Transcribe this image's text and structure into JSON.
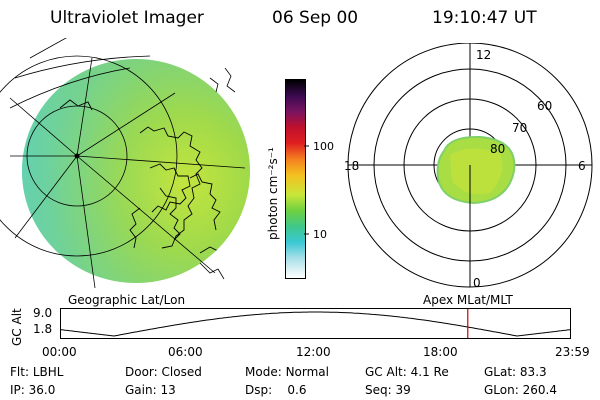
{
  "header": {
    "title": "Ultraviolet Imager",
    "date": "06 Sep 00",
    "time": "19:10:47 UT"
  },
  "colorbar": {
    "unit_label": "photon cm⁻²s⁻¹",
    "ticks": [
      {
        "label": "100",
        "value": 100
      },
      {
        "label": "10",
        "value": 10
      }
    ]
  },
  "geo_panel": {
    "label": "Geographic Lat/Lon"
  },
  "polar_panel": {
    "label": "Apex MLat/MLT",
    "mlt_labels": {
      "top": "12",
      "bottom": "0",
      "left": "18",
      "right": "6"
    },
    "lat_labels": [
      "60",
      "70",
      "80"
    ]
  },
  "altitude_plot": {
    "ylabel": "GC Alt",
    "y_ticks": [
      "9.0",
      "1.8"
    ],
    "x_ticks": [
      "00:00",
      "06:00",
      "12:00",
      "18:00",
      "23:59"
    ],
    "y_range": [
      1.8,
      9.0
    ],
    "current_time_hours": 19.18
  },
  "info_rows": [
    [
      {
        "label": "Flt:",
        "value": "LBHL"
      },
      {
        "label": "Door:",
        "value": "Closed"
      },
      {
        "label": "Mode:",
        "value": "Normal"
      },
      {
        "label": "GC Alt:",
        "value": "4.1 Re"
      },
      {
        "label": "GLat:",
        "value": "83.3"
      }
    ],
    [
      {
        "label": "IP:",
        "value": "36.0"
      },
      {
        "label": "Gain:",
        "value": "13"
      },
      {
        "label": "Dsp:",
        "value": "0.6"
      },
      {
        "label": "Seq:",
        "value": "39"
      },
      {
        "label": "GLon:",
        "value": "260.4"
      }
    ]
  ],
  "colors": {
    "accent_marker": "#cc0000"
  }
}
